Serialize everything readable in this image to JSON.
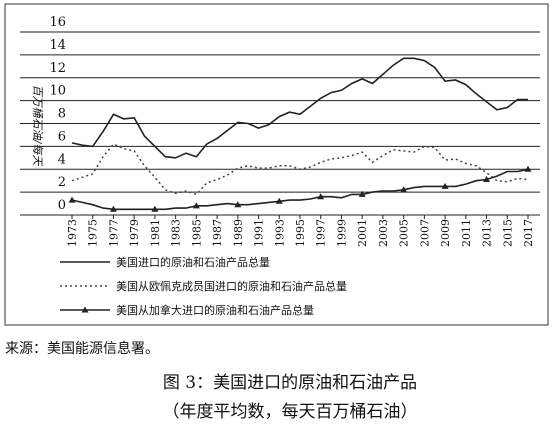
{
  "chart_data": {
    "type": "line",
    "y_label": "百万桶石油/每天",
    "x": [
      1973,
      1974,
      1975,
      1976,
      1977,
      1978,
      1979,
      1980,
      1981,
      1982,
      1983,
      1984,
      1985,
      1986,
      1987,
      1988,
      1989,
      1990,
      1991,
      1992,
      1993,
      1994,
      1995,
      1996,
      1997,
      1998,
      1999,
      2000,
      2001,
      2002,
      2003,
      2004,
      2005,
      2006,
      2007,
      2008,
      2009,
      2010,
      2011,
      2012,
      2013,
      2014,
      2015,
      2016,
      2017
    ],
    "xlim": [
      1973,
      2017
    ],
    "xticks": [
      1973,
      1975,
      1977,
      1979,
      1981,
      1983,
      1985,
      1987,
      1989,
      1991,
      1993,
      1995,
      1997,
      1999,
      2001,
      2003,
      2005,
      2007,
      2009,
      2011,
      2013,
      2015,
      2017
    ],
    "ylim": [
      0,
      16
    ],
    "yticks": [
      0,
      2,
      4,
      6,
      8,
      10,
      12,
      14,
      16
    ],
    "grid": true,
    "series": [
      {
        "name": "美国进口的原油和石油产品总量",
        "color": "#222222",
        "style": "solid",
        "values": [
          6.3,
          6.1,
          6.0,
          7.3,
          8.8,
          8.4,
          8.5,
          6.9,
          6.0,
          5.1,
          5.0,
          5.4,
          5.1,
          6.2,
          6.7,
          7.4,
          8.1,
          8.0,
          7.6,
          7.9,
          8.6,
          9.0,
          8.8,
          9.5,
          10.2,
          10.7,
          10.9,
          11.5,
          11.9,
          11.5,
          12.3,
          13.1,
          13.7,
          13.7,
          13.5,
          12.9,
          11.7,
          11.8,
          11.4,
          10.6,
          9.9,
          9.2,
          9.4,
          10.1,
          10.1
        ]
      },
      {
        "name": "美国从欧佩克成员国进口的原油和石油产品总量",
        "color": "#444444",
        "style": "dotted",
        "values": [
          3.0,
          3.3,
          3.6,
          5.1,
          6.2,
          5.8,
          5.6,
          4.3,
          3.3,
          2.2,
          1.9,
          2.1,
          1.8,
          2.8,
          3.1,
          3.5,
          4.1,
          4.3,
          4.1,
          4.1,
          4.3,
          4.3,
          4.0,
          4.2,
          4.6,
          4.9,
          5.0,
          5.2,
          5.5,
          4.6,
          5.2,
          5.7,
          5.6,
          5.5,
          6.0,
          5.9,
          4.8,
          4.9,
          4.5,
          4.3,
          3.7,
          3.0,
          2.9,
          3.2,
          3.1
        ]
      },
      {
        "name": "美国从加拿大进口的原油和石油产品总量",
        "color": "#222222",
        "style": "marker",
        "values": [
          1.3,
          1.1,
          0.9,
          0.6,
          0.5,
          0.5,
          0.5,
          0.5,
          0.5,
          0.5,
          0.6,
          0.6,
          0.8,
          0.8,
          0.9,
          1.0,
          0.9,
          0.9,
          1.0,
          1.1,
          1.2,
          1.3,
          1.3,
          1.4,
          1.6,
          1.6,
          1.5,
          1.8,
          1.8,
          2.0,
          2.1,
          2.1,
          2.2,
          2.4,
          2.5,
          2.5,
          2.5,
          2.5,
          2.7,
          3.0,
          3.1,
          3.4,
          3.8,
          3.8,
          4.0
        ]
      }
    ],
    "source": "来源：美国能源信息署。",
    "caption": "图 3：美国进口的原油和石油产品",
    "caption_note": "（年度平均数，每天百万桶石油）"
  }
}
